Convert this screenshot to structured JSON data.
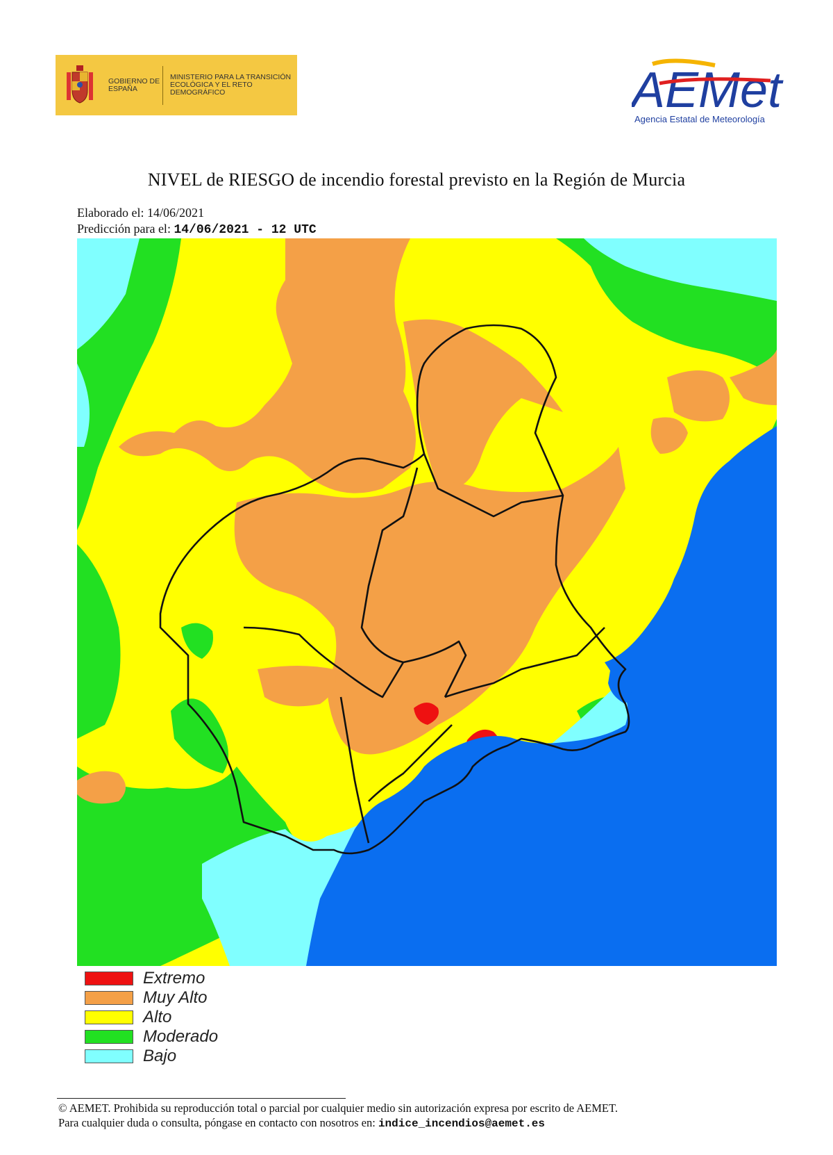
{
  "header": {
    "gov_line1": "GOBIERNO DE ESPAÑA",
    "gov_line2": "MINISTERIO PARA LA TRANSICIÓN ECOLÓGICA Y EL RETO DEMOGRÁFICO",
    "aemet_name": "AEMet",
    "aemet_subtitle": "Agencia Estatal de Meteorología"
  },
  "title": "NIVEL de RIESGO de incendio forestal previsto en la Región de Murcia",
  "elaborado": {
    "label": "Elaborado el:",
    "date": "14/06/2021"
  },
  "prediccion": {
    "label": "Predicción para el:",
    "value": "14/06/2021 - 12 UTC"
  },
  "legend": [
    {
      "label": "Extremo",
      "color": "#ee1111"
    },
    {
      "label": "Muy Alto",
      "color": "#f4a047"
    },
    {
      "label": "Alto",
      "color": "#ffff00"
    },
    {
      "label": "Moderado",
      "color": "#22e022"
    },
    {
      "label": "Bajo",
      "color": "#80ffff"
    }
  ],
  "sea_color": "#0a6ef0",
  "footer": {
    "line1": "© AEMET. Prohibida su reproducción total o parcial por cualquier medio sin autorización expresa por escrito de AEMET.",
    "line2_prefix": "Para cualquier duda o consulta, póngase en contacto con nosotros en:",
    "email": "indice_incendios@aemet.es"
  }
}
